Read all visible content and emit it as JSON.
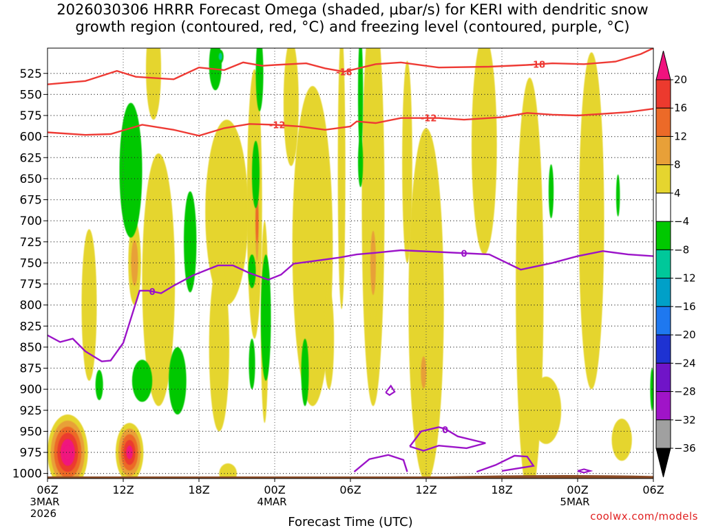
{
  "title": {
    "line1": "2026030306 HRRR Forecast Omega (shaded, µbar/s) for KERI with dendritic snow",
    "line2": "growth region (contoured, red, °C) and freezing level (contoured, purple, °C)"
  },
  "credit": "coolwx.com/models",
  "chart_data": {
    "type": "heatmap",
    "title": "2026030306 HRRR Forecast Omega (shaded, µbar/s) for KERI with dendritic snow growth region (contoured, red, °C) and freezing level (contoured, purple, °C)",
    "xlabel": "Forecast Time (UTC)",
    "ylabel": "",
    "x_range_hours": [
      0,
      48
    ],
    "x_ticks": [
      {
        "hour": 0,
        "label": "06Z",
        "sub1": "3MAR",
        "sub2": "2026"
      },
      {
        "hour": 6,
        "label": "12Z"
      },
      {
        "hour": 12,
        "label": "18Z"
      },
      {
        "hour": 18,
        "label": "00Z",
        "sub1": "4MAR"
      },
      {
        "hour": 24,
        "label": "06Z"
      },
      {
        "hour": 30,
        "label": "12Z"
      },
      {
        "hour": 36,
        "label": "18Z"
      },
      {
        "hour": 42,
        "label": "00Z",
        "sub1": "5MAR"
      },
      {
        "hour": 48,
        "label": "06Z"
      }
    ],
    "y_range_hpa": [
      1006,
      495
    ],
    "y_ticks": [
      525,
      550,
      575,
      600,
      625,
      650,
      675,
      700,
      725,
      750,
      775,
      800,
      825,
      850,
      875,
      900,
      925,
      950,
      975,
      1000
    ],
    "colorbar": {
      "labels": [
        "20",
        "16",
        "12",
        "8",
        "4",
        "−4",
        "−8",
        "−12",
        "−16",
        "−20",
        "−24",
        "−28",
        "−32",
        "−36"
      ],
      "bins": [
        {
          "range": ">20",
          "color": "#f0127e"
        },
        {
          "range": "16..20",
          "color": "#ec3a2e"
        },
        {
          "range": "12..16",
          "color": "#ec6a28"
        },
        {
          "range": "8..12",
          "color": "#e8a038"
        },
        {
          "range": "4..8",
          "color": "#e5d52f"
        },
        {
          "range": "-4..4",
          "color": "#ffffff"
        },
        {
          "range": "-8..-4",
          "color": "#00c800"
        },
        {
          "range": "-12..-8",
          "color": "#00c89a"
        },
        {
          "range": "-16..-12",
          "color": "#00a0c8"
        },
        {
          "range": "-20..-16",
          "color": "#1e78f0"
        },
        {
          "range": "-24..-20",
          "color": "#1e32d2"
        },
        {
          "range": "-28..-24",
          "color": "#7014c8"
        },
        {
          "range": "-32..-28",
          "color": "#a014c8"
        },
        {
          "range": "-36..-32",
          "color": "#a0a0a0"
        },
        {
          "range": "<-36",
          "color": "#000000"
        }
      ]
    },
    "omega_features": [
      {
        "value": 6,
        "t": 8.8,
        "p": 770,
        "dt": 1.3,
        "dp": 150
      },
      {
        "value": 10,
        "t": 6.9,
        "p": 750,
        "dt": 0.5,
        "dp": 50
      },
      {
        "value": 5,
        "t": 3.3,
        "p": 800,
        "dt": 0.6,
        "dp": 90
      },
      {
        "value": 6,
        "t": 8.4,
        "p": 520,
        "dt": 0.6,
        "dp": 60
      },
      {
        "value": 6,
        "t": 14.2,
        "p": 690,
        "dt": 1.7,
        "dp": 110
      },
      {
        "value": 6,
        "t": 13.6,
        "p": 850,
        "dt": 0.8,
        "dp": 100
      },
      {
        "value": 5,
        "t": 14.3,
        "p": 1000,
        "dt": 0.7,
        "dp": 12
      },
      {
        "value": 7,
        "t": 16.4,
        "p": 680,
        "dt": 0.6,
        "dp": 160
      },
      {
        "value": 16,
        "t": 16.6,
        "p": 700,
        "dt": 0.2,
        "dp": 70
      },
      {
        "value": 6,
        "t": 17.2,
        "p": 820,
        "dt": 0.3,
        "dp": 120
      },
      {
        "value": 6,
        "t": 19.3,
        "p": 560,
        "dt": 0.6,
        "dp": 75
      },
      {
        "value": 6,
        "t": 21.0,
        "p": 730,
        "dt": 1.6,
        "dp": 190
      },
      {
        "value": 8,
        "t": 22.3,
        "p": 840,
        "dt": 0.4,
        "dp": 60
      },
      {
        "value": 6,
        "t": 23.3,
        "p": 640,
        "dt": 0.3,
        "dp": 165
      },
      {
        "value": 6,
        "t": 25.8,
        "p": 680,
        "dt": 0.9,
        "dp": 240
      },
      {
        "value": 9,
        "t": 25.8,
        "p": 750,
        "dt": 0.4,
        "dp": 70
      },
      {
        "value": 6,
        "t": 28.5,
        "p": 630,
        "dt": 0.4,
        "dp": 120
      },
      {
        "value": 6,
        "t": 30.0,
        "p": 800,
        "dt": 1.4,
        "dp": 210
      },
      {
        "value": 12,
        "t": 29.8,
        "p": 880,
        "dt": 0.4,
        "dp": 35
      },
      {
        "value": 6,
        "t": 34.6,
        "p": 610,
        "dt": 1.0,
        "dp": 130
      },
      {
        "value": 6,
        "t": 38.2,
        "p": 780,
        "dt": 1.1,
        "dp": 250
      },
      {
        "value": 6,
        "t": 39.5,
        "p": 925,
        "dt": 1.2,
        "dp": 40
      },
      {
        "value": 6,
        "t": 43.1,
        "p": 700,
        "dt": 1.0,
        "dp": 200
      },
      {
        "value": 6,
        "t": 45.5,
        "p": 960,
        "dt": 0.8,
        "dp": 25
      },
      {
        "value": 26,
        "t": 1.6,
        "p": 975,
        "dt": 1.6,
        "dp": 45
      },
      {
        "value": 22,
        "t": 6.5,
        "p": 975,
        "dt": 1.1,
        "dp": 35
      },
      {
        "value": -7,
        "t": 6.6,
        "p": 640,
        "dt": 0.9,
        "dp": 80
      },
      {
        "value": -6,
        "t": 11.3,
        "p": 725,
        "dt": 0.5,
        "dp": 60
      },
      {
        "value": -7,
        "t": 7.5,
        "p": 890,
        "dt": 0.8,
        "dp": 25
      },
      {
        "value": -7,
        "t": 10.3,
        "p": 890,
        "dt": 0.7,
        "dp": 40
      },
      {
        "value": -7,
        "t": 4.1,
        "p": 895,
        "dt": 0.3,
        "dp": 18
      },
      {
        "value": -7,
        "t": 13.3,
        "p": 515,
        "dt": 0.5,
        "dp": 30
      },
      {
        "value": -10,
        "t": 13.7,
        "p": 505,
        "dt": 0.25,
        "dp": 8
      },
      {
        "value": -7,
        "t": 16.8,
        "p": 525,
        "dt": 0.3,
        "dp": 45
      },
      {
        "value": -7,
        "t": 16.5,
        "p": 645,
        "dt": 0.3,
        "dp": 40
      },
      {
        "value": -7,
        "t": 16.2,
        "p": 760,
        "dt": 0.3,
        "dp": 20
      },
      {
        "value": -7,
        "t": 16.2,
        "p": 870,
        "dt": 0.25,
        "dp": 30
      },
      {
        "value": -7,
        "t": 17.3,
        "p": 815,
        "dt": 0.4,
        "dp": 75
      },
      {
        "value": -6,
        "t": 24.8,
        "p": 550,
        "dt": 0.2,
        "dp": 70
      },
      {
        "value": -6,
        "t": 24.8,
        "p": 630,
        "dt": 0.2,
        "dp": 30
      },
      {
        "value": -7,
        "t": 20.4,
        "p": 880,
        "dt": 0.3,
        "dp": 40
      },
      {
        "value": -7,
        "t": 39.9,
        "p": 665,
        "dt": 0.2,
        "dp": 32
      },
      {
        "value": -7,
        "t": 45.2,
        "p": 670,
        "dt": 0.15,
        "dp": 25
      },
      {
        "value": -7,
        "t": 47.9,
        "p": 900,
        "dt": 0.15,
        "dp": 25
      }
    ],
    "dendritic_contours": [
      {
        "label": "-18",
        "label_at_hour": 23.5,
        "points": [
          [
            0,
            538
          ],
          [
            3,
            534
          ],
          [
            5.5,
            522
          ],
          [
            7,
            529
          ],
          [
            10,
            532
          ],
          [
            12,
            518
          ],
          [
            14,
            521
          ],
          [
            15.5,
            512
          ],
          [
            17,
            516
          ],
          [
            18,
            515
          ],
          [
            20.5,
            513
          ],
          [
            22,
            519
          ],
          [
            23.5,
            523
          ],
          [
            26,
            514
          ],
          [
            28,
            512
          ],
          [
            31,
            518
          ],
          [
            35,
            517
          ],
          [
            38,
            515
          ],
          [
            40,
            513
          ],
          [
            42.5,
            514
          ],
          [
            45,
            511
          ],
          [
            47,
            502
          ],
          [
            48,
            495
          ]
        ]
      },
      {
        "label": "-12",
        "label_at_hour": 18.2,
        "points": [
          [
            0,
            595
          ],
          [
            3,
            598
          ],
          [
            5,
            597
          ],
          [
            7.5,
            586
          ],
          [
            10,
            592
          ],
          [
            12,
            599
          ],
          [
            14,
            590
          ],
          [
            16,
            585
          ],
          [
            18,
            586
          ],
          [
            20,
            588
          ],
          [
            22,
            592
          ],
          [
            24,
            588
          ],
          [
            24.5,
            582
          ],
          [
            26,
            584
          ],
          [
            28,
            578
          ],
          [
            31,
            578
          ],
          [
            33,
            580
          ],
          [
            35,
            578
          ],
          [
            36,
            577
          ],
          [
            38,
            572
          ],
          [
            40,
            574
          ],
          [
            42,
            575
          ],
          [
            44,
            573
          ],
          [
            46,
            571
          ],
          [
            48,
            567
          ]
        ]
      },
      {
        "label": "-12",
        "label_at_hour": 30.2,
        "points": []
      }
    ],
    "freezing_level": {
      "label": "0",
      "label_at_hour": 8.3,
      "main": [
        [
          0,
          836
        ],
        [
          1,
          844
        ],
        [
          2,
          840
        ],
        [
          3,
          855
        ],
        [
          4.3,
          867
        ],
        [
          5,
          866
        ],
        [
          6,
          845
        ],
        [
          7.3,
          783
        ],
        [
          8,
          783
        ],
        [
          9,
          786
        ],
        [
          10,
          777
        ],
        [
          11.5,
          765
        ],
        [
          12.5,
          759
        ],
        [
          13.5,
          753
        ],
        [
          14.7,
          753
        ],
        [
          16,
          762
        ],
        [
          17.5,
          770
        ],
        [
          18.5,
          764
        ],
        [
          19.5,
          751
        ],
        [
          21,
          748
        ],
        [
          23,
          744
        ],
        [
          24.5,
          740
        ],
        [
          26,
          738
        ],
        [
          28,
          735
        ],
        [
          31,
          737
        ],
        [
          35,
          740
        ],
        [
          37.5,
          758
        ],
        [
          40,
          750
        ],
        [
          42,
          742
        ],
        [
          44,
          736
        ],
        [
          46,
          740
        ],
        [
          48,
          742
        ]
      ],
      "secondary_label": "0",
      "secondary_label_at_hour": 31.5,
      "secondary_contour": [
        [
          28.7,
          968
        ],
        [
          29.6,
          950
        ],
        [
          31,
          945
        ],
        [
          31.5,
          947
        ],
        [
          32.5,
          956
        ],
        [
          34.7,
          964
        ],
        [
          33.2,
          970
        ],
        [
          31,
          967
        ],
        [
          29.8,
          973
        ],
        [
          28.7,
          968
        ]
      ],
      "small_contours": [
        [
          [
            26.8,
            904
          ],
          [
            27.2,
            896
          ],
          [
            27.5,
            903
          ],
          [
            27.1,
            907
          ],
          [
            26.8,
            904
          ]
        ],
        [
          [
            42,
            997
          ],
          [
            42.5,
            995
          ],
          [
            43,
            997
          ],
          [
            42.5,
            999
          ],
          [
            42,
            997
          ]
        ]
      ]
    }
  }
}
